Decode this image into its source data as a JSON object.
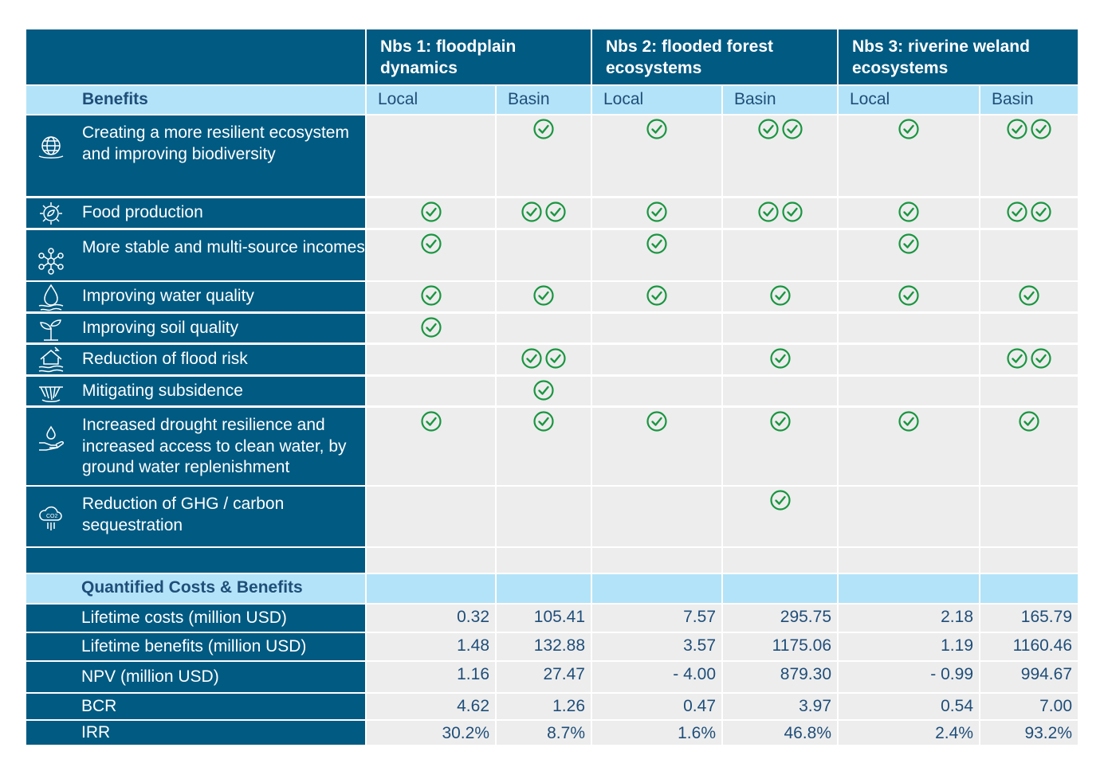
{
  "header": {
    "nbs1_title": "Nbs 1: floodplain dynamics",
    "nbs2_title": "Nbs 2: flooded forest ecosystems",
    "nbs3_title": "Nbs 3: riverine weland ecosystems"
  },
  "subheader": {
    "benefits_label": "Benefits",
    "local": "Local",
    "basin": "Basin"
  },
  "benefits": [
    {
      "label": "Creating a more resilient ecosystem and improving biodiversity",
      "icon": "globe-icon",
      "checks": [
        0,
        1,
        1,
        2,
        1,
        2
      ]
    },
    {
      "label": "Food production",
      "icon": "gear-leaf-icon",
      "checks": [
        1,
        2,
        1,
        2,
        1,
        2
      ]
    },
    {
      "label": "More stable and multi-source incomes",
      "icon": "network-icon",
      "checks": [
        1,
        0,
        1,
        0,
        1,
        0
      ]
    },
    {
      "label": "Improving water quality",
      "icon": "water-drop-icon",
      "checks": [
        1,
        1,
        1,
        1,
        1,
        1
      ]
    },
    {
      "label": "Improving soil quality",
      "icon": "sprout-icon",
      "checks": [
        1,
        0,
        0,
        0,
        0,
        0
      ]
    },
    {
      "label": "Reduction of flood risk",
      "icon": "flooded-house-icon",
      "checks": [
        0,
        2,
        0,
        1,
        0,
        2
      ]
    },
    {
      "label": "Mitigating subsidence",
      "icon": "subsidence-icon",
      "checks": [
        0,
        1,
        0,
        0,
        0,
        0
      ]
    },
    {
      "label": "Increased drought resilience and increased access to clean water, by ground water replenishment",
      "icon": "hand-water-icon",
      "checks": [
        1,
        1,
        1,
        1,
        1,
        1
      ]
    },
    {
      "label": "Reduction of GHG / carbon sequestration",
      "icon": "co2-cloud-icon",
      "checks": [
        0,
        0,
        0,
        1,
        0,
        0
      ]
    }
  ],
  "quantified": {
    "section_label": "Quantified Costs & Benefits",
    "rows": [
      {
        "label": "Lifetime costs (million USD)",
        "values": [
          "0.32",
          "105.41",
          "7.57",
          "295.75",
          "2.18",
          "165.79"
        ]
      },
      {
        "label": "Lifetime benefits (million USD)",
        "values": [
          "1.48",
          "132.88",
          "3.57",
          "1175.06",
          "1.19",
          "1160.46"
        ]
      },
      {
        "label": "NPV (million USD)",
        "values": [
          "1.16",
          "27.47",
          "- 4.00",
          "879.30",
          "- 0.99",
          "994.67"
        ]
      },
      {
        "label": "BCR",
        "values": [
          "4.62",
          "1.26",
          "0.47",
          "3.97",
          "0.54",
          "7.00"
        ]
      },
      {
        "label": "IRR",
        "values": [
          "30.2%",
          "8.7%",
          "1.6%",
          "46.8%",
          "2.4%",
          "93.2%"
        ]
      }
    ]
  },
  "colors": {
    "dark_blue": "#005a82",
    "light_blue": "#b3e3f8",
    "grey": "#ededed",
    "check_green": "#1a9641"
  }
}
